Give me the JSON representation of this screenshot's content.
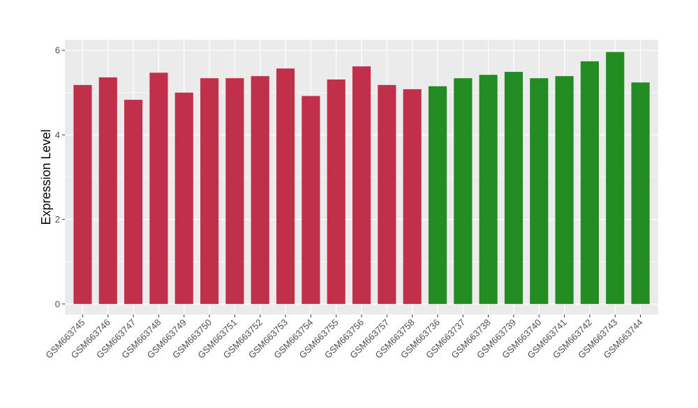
{
  "chart_data": {
    "type": "bar",
    "title": "",
    "xlabel": "",
    "ylabel": "Expression Level",
    "ylim": [
      -0.25,
      6.25
    ],
    "yticks": [
      0,
      2,
      4,
      6
    ],
    "grid": true,
    "legend": "none",
    "panel_color": "#ebebeb",
    "grid_color": "#ffffff",
    "categories": [
      "GSM663745",
      "GSM663746",
      "GSM663747",
      "GSM663748",
      "GSM663749",
      "GSM663750",
      "GSM663751",
      "GSM663752",
      "GSM663753",
      "GSM663754",
      "GSM663755",
      "GSM663756",
      "GSM663757",
      "GSM663758",
      "GSM663736",
      "GSM663737",
      "GSM663738",
      "GSM663739",
      "GSM663740",
      "GSM663741",
      "GSM663742",
      "GSM663743",
      "GSM663744"
    ],
    "values": [
      5.18,
      5.36,
      4.83,
      5.47,
      5.0,
      5.34,
      5.34,
      5.39,
      5.57,
      4.92,
      5.31,
      5.62,
      5.18,
      5.08,
      5.15,
      5.34,
      5.42,
      5.49,
      5.34,
      5.39,
      5.74,
      5.96,
      5.24
    ],
    "bar_colors": [
      "#c0304a",
      "#c0304a",
      "#c0304a",
      "#c0304a",
      "#c0304a",
      "#c0304a",
      "#c0304a",
      "#c0304a",
      "#c0304a",
      "#c0304a",
      "#c0304a",
      "#c0304a",
      "#c0304a",
      "#c0304a",
      "#228b22",
      "#228b22",
      "#228b22",
      "#228b22",
      "#228b22",
      "#228b22",
      "#228b22",
      "#228b22",
      "#228b22"
    ]
  }
}
